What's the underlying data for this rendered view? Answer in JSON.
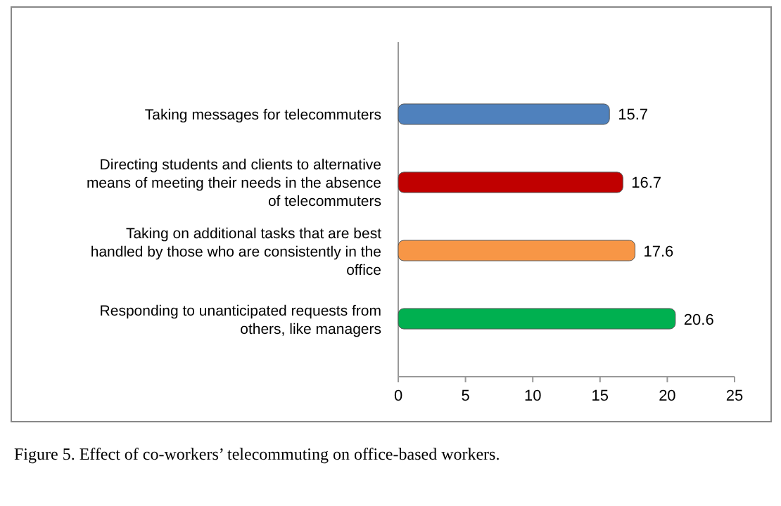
{
  "chart_data": {
    "type": "bar",
    "orientation": "horizontal",
    "categories": [
      "Taking messages for telecommuters",
      "Directing students and clients to alternative means of meeting their needs in the absence of telecommuters",
      "Taking on additional tasks that are best handled by those who are consistently in the office",
      "Responding to unanticipated requests from others, like managers"
    ],
    "values": [
      15.7,
      16.7,
      17.6,
      20.6
    ],
    "colors": [
      "#4f81bd",
      "#c00000",
      "#f79646",
      "#00b050"
    ],
    "xlim": [
      0,
      25
    ],
    "xticks": [
      0,
      5,
      10,
      15,
      20,
      25
    ],
    "data_labels": true,
    "annotations": [
      "Figure 5. Effect of co-workers’ telecommuting on office-based workers."
    ]
  }
}
